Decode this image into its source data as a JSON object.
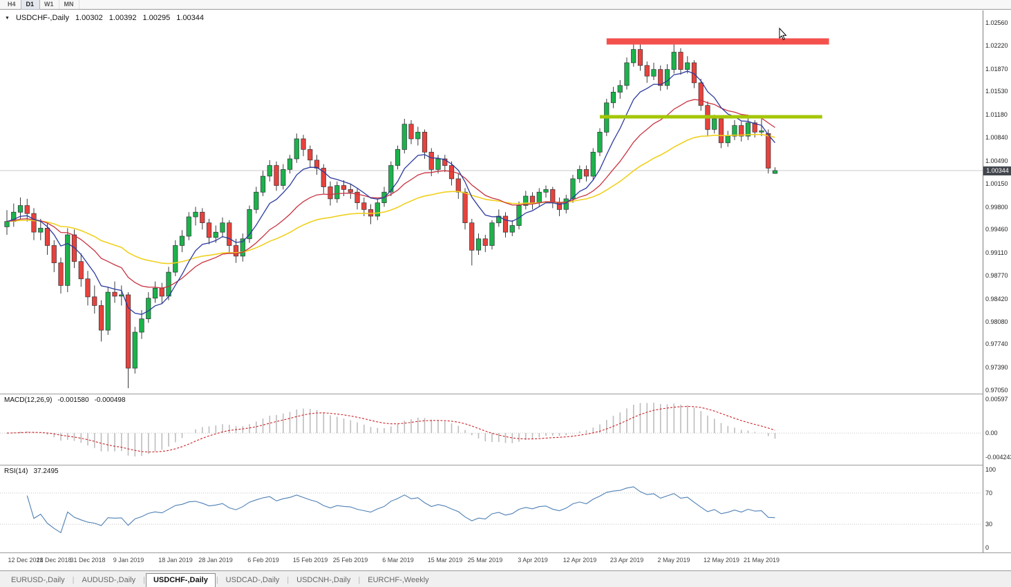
{
  "toolbar": {
    "timeframes": [
      {
        "label": "H4",
        "active": false
      },
      {
        "label": "D1",
        "active": true
      },
      {
        "label": "W1",
        "active": false
      },
      {
        "label": "MN",
        "active": false
      }
    ]
  },
  "chart": {
    "dropdown_icon": "▼",
    "symbol_label": "USDCHF-,Daily",
    "open": "1.00302",
    "high": "1.00392",
    "low": "1.00295",
    "close": "1.00344",
    "current_price": "1.00344",
    "price_axis_labels": [
      "1.02560",
      "1.02220",
      "1.01870",
      "1.01530",
      "1.01180",
      "1.00840",
      "1.00490",
      "1.00150",
      "0.99800",
      "0.99460",
      "0.99110",
      "0.98770",
      "0.98420",
      "0.98080",
      "0.97740",
      "0.97390",
      "0.97050"
    ],
    "colors": {
      "bull": "#1cb24b",
      "bear": "#e8423c",
      "wick": "#3a3a3a",
      "ma_fast": "#2b3a9e",
      "ma_mid": "#c8313f",
      "ma_slow": "#f0d01e",
      "resistance": "#f4514d",
      "support": "#a4c607",
      "price_line": "#c8c8c8",
      "badge_bg": "#42464d"
    }
  },
  "macd": {
    "name": "MACD(12,26,9)",
    "value_main": "-0.001580",
    "value_signal": "-0.000498",
    "axis_labels": [
      "0.00597",
      "0.00",
      "-0.004243"
    ],
    "histogram_color": "#bdbdbd",
    "signal_color": "#cc2328"
  },
  "rsi": {
    "name": "RSI(14)",
    "value": "37.2495",
    "axis_labels": [
      "100",
      "70",
      "30",
      "0"
    ],
    "line_color": "#4d7fb4"
  },
  "date_axis": [
    {
      "label": "12 Dec 2018",
      "index": 0
    },
    {
      "label": "21 Dec 2018",
      "index": 7
    },
    {
      "label": "31 Dec 2018",
      "index": 12
    },
    {
      "label": "9 Jan 2019",
      "index": 18
    },
    {
      "label": "18 Jan 2019",
      "index": 25
    },
    {
      "label": "28 Jan 2019",
      "index": 31
    },
    {
      "label": "6 Feb 2019",
      "index": 38
    },
    {
      "label": "15 Feb 2019",
      "index": 45
    },
    {
      "label": "25 Feb 2019",
      "index": 51
    },
    {
      "label": "6 Mar 2019",
      "index": 58
    },
    {
      "label": "15 Mar 2019",
      "index": 65
    },
    {
      "label": "25 Mar 2019",
      "index": 71
    },
    {
      "label": "3 Apr 2019",
      "index": 78
    },
    {
      "label": "12 Apr 2019",
      "index": 85
    },
    {
      "label": "23 Apr 2019",
      "index": 92
    },
    {
      "label": "2 May 2019",
      "index": 99
    },
    {
      "label": "12 May 2019",
      "index": 106
    },
    {
      "label": "21 May 2019",
      "index": 112
    }
  ],
  "tabs": [
    {
      "label": "EURUSD-,Daily",
      "active": false
    },
    {
      "label": "AUDUSD-,Daily",
      "active": false
    },
    {
      "label": "USDCHF-,Daily",
      "active": true
    },
    {
      "label": "USDCAD-,Daily",
      "active": false
    },
    {
      "label": "USDCNH-,Daily",
      "active": false
    },
    {
      "label": "EURCHF-,Weekly",
      "active": false
    }
  ],
  "chart_data": {
    "type": "candlestick",
    "symbol": "USDCHF",
    "timeframe": "Daily",
    "price_range": [
      0.9705,
      1.0256
    ],
    "overlays": [
      {
        "name": "ema-fast",
        "period": 8
      },
      {
        "name": "ema-mid",
        "period": 20
      },
      {
        "name": "ema-slow",
        "period": 45
      }
    ],
    "annotations": [
      {
        "type": "horizontal-band",
        "role": "resistance",
        "price": 1.0228,
        "from_index": 89,
        "to_index": 122
      },
      {
        "type": "horizontal-band",
        "role": "support",
        "price": 1.0115,
        "from_index": 88,
        "to_index": 121
      }
    ],
    "indicators": {
      "macd": {
        "fast": 12,
        "slow": 26,
        "signal": 9,
        "last_main": -0.00158,
        "last_signal": -0.000498,
        "scale_max": 0.00597,
        "scale_min": -0.004243
      },
      "rsi": {
        "period": 14,
        "last_value": 37.2495,
        "levels": [
          70,
          30
        ]
      }
    },
    "ohlc": [
      [
        0.995,
        0.9975,
        0.9938,
        0.9958
      ],
      [
        0.9958,
        0.9985,
        0.995,
        0.9972
      ],
      [
        0.9972,
        0.9994,
        0.9962,
        0.9982
      ],
      [
        0.9982,
        0.9992,
        0.9958,
        0.997
      ],
      [
        0.997,
        0.9978,
        0.993,
        0.9942
      ],
      [
        0.9942,
        0.9962,
        0.993,
        0.9948
      ],
      [
        0.9948,
        0.9955,
        0.9908,
        0.9922
      ],
      [
        0.9922,
        0.993,
        0.9882,
        0.9896
      ],
      [
        0.9896,
        0.9904,
        0.985,
        0.9862
      ],
      [
        0.9862,
        0.9948,
        0.9852,
        0.9938
      ],
      [
        0.9938,
        0.9946,
        0.9888,
        0.9898
      ],
      [
        0.9898,
        0.991,
        0.986,
        0.9872
      ],
      [
        0.9872,
        0.9884,
        0.9832,
        0.9845
      ],
      [
        0.9845,
        0.9862,
        0.982,
        0.9832
      ],
      [
        0.9832,
        0.984,
        0.9778,
        0.9795
      ],
      [
        0.9795,
        0.986,
        0.9788,
        0.9852
      ],
      [
        0.9852,
        0.9868,
        0.9836,
        0.9846
      ],
      [
        0.9846,
        0.9862,
        0.9832,
        0.9848
      ],
      [
        0.9848,
        0.9852,
        0.9708,
        0.9738
      ],
      [
        0.9738,
        0.98,
        0.973,
        0.9792
      ],
      [
        0.9792,
        0.9825,
        0.9782,
        0.9812
      ],
      [
        0.9812,
        0.9852,
        0.9806,
        0.9843
      ],
      [
        0.9843,
        0.9868,
        0.9836,
        0.9858
      ],
      [
        0.9858,
        0.9866,
        0.9835,
        0.9846
      ],
      [
        0.9846,
        0.989,
        0.984,
        0.9882
      ],
      [
        0.9882,
        0.993,
        0.9876,
        0.9922
      ],
      [
        0.9922,
        0.9945,
        0.9912,
        0.9936
      ],
      [
        0.9936,
        0.9972,
        0.993,
        0.9965
      ],
      [
        0.9965,
        0.998,
        0.9952,
        0.9972
      ],
      [
        0.9972,
        0.9978,
        0.9946,
        0.9956
      ],
      [
        0.9956,
        0.9962,
        0.9924,
        0.9934
      ],
      [
        0.9934,
        0.9952,
        0.9926,
        0.9942
      ],
      [
        0.9942,
        0.9964,
        0.9934,
        0.9956
      ],
      [
        0.9956,
        0.996,
        0.9912,
        0.9922
      ],
      [
        0.9922,
        0.9932,
        0.9896,
        0.9906
      ],
      [
        0.9906,
        0.994,
        0.9898,
        0.9932
      ],
      [
        0.9932,
        0.9982,
        0.9926,
        0.9976
      ],
      [
        0.9976,
        1.001,
        0.997,
        1.0002
      ],
      [
        1.0002,
        1.0034,
        0.9996,
        1.0026
      ],
      [
        1.0026,
        1.005,
        1.0018,
        1.0042
      ],
      [
        1.0042,
        1.0048,
        1.0004,
        1.0012
      ],
      [
        1.0012,
        1.0044,
        1.0006,
        1.0036
      ],
      [
        1.0036,
        1.0058,
        1.003,
        1.0052
      ],
      [
        1.0052,
        1.009,
        1.0046,
        1.0082
      ],
      [
        1.0082,
        1.0088,
        1.0056,
        1.0066
      ],
      [
        1.0066,
        1.0072,
        1.004,
        1.005
      ],
      [
        1.005,
        1.0058,
        1.0028,
        1.0038
      ],
      [
        1.0038,
        1.0044,
        1.0,
        1.001
      ],
      [
        1.001,
        1.0018,
        0.9982,
        0.9992
      ],
      [
        0.9992,
        1.0018,
        0.9986,
        1.0012
      ],
      [
        1.0012,
        1.002,
        0.9996,
        1.0006
      ],
      [
        1.0006,
        1.0014,
        0.9992,
        1.0002
      ],
      [
        1.0002,
        1.0008,
        0.9976,
        0.9986
      ],
      [
        0.9986,
        0.9994,
        0.9966,
        0.9976
      ],
      [
        0.9976,
        0.9984,
        0.9954,
        0.9966
      ],
      [
        0.9966,
        0.9992,
        0.996,
        0.9986
      ],
      [
        0.9986,
        1.001,
        0.998,
        1.0002
      ],
      [
        1.0002,
        1.0048,
        0.9996,
        1.0042
      ],
      [
        1.0042,
        1.0072,
        1.0036,
        1.0066
      ],
      [
        1.0066,
        1.0112,
        1.006,
        1.0104
      ],
      [
        1.0104,
        1.011,
        1.0074,
        1.0082
      ],
      [
        1.0082,
        1.01,
        1.0072,
        1.0092
      ],
      [
        1.0092,
        1.0096,
        1.0052,
        1.0062
      ],
      [
        1.0062,
        1.0068,
        1.0026,
        1.0036
      ],
      [
        1.0036,
        1.0058,
        1.003,
        1.0052
      ],
      [
        1.0052,
        1.0058,
        1.0032,
        1.0042
      ],
      [
        1.0042,
        1.0048,
        1.0012,
        1.0022
      ],
      [
        1.0022,
        1.003,
        0.9992,
        1.0002
      ],
      [
        1.0002,
        1.0008,
        0.9946,
        0.9956
      ],
      [
        0.9956,
        0.9962,
        0.9892,
        0.9915
      ],
      [
        0.9915,
        0.994,
        0.9908,
        0.9932
      ],
      [
        0.9932,
        0.9938,
        0.9912,
        0.9922
      ],
      [
        0.9922,
        0.996,
        0.9916,
        0.9956
      ],
      [
        0.9956,
        0.9976,
        0.995,
        0.9966
      ],
      [
        0.9966,
        0.9972,
        0.9934,
        0.9942
      ],
      [
        0.9942,
        0.996,
        0.9936,
        0.9952
      ],
      [
        0.9952,
        0.9988,
        0.9946,
        0.9982
      ],
      [
        0.9982,
        1.0004,
        0.9976,
        0.9996
      ],
      [
        0.9996,
        1.0002,
        0.9976,
        0.9986
      ],
      [
        0.9986,
        1.0008,
        0.998,
        1.0002
      ],
      [
        1.0002,
        1.0012,
        0.9994,
        1.0006
      ],
      [
        1.0006,
        1.001,
        0.9978,
        0.9986
      ],
      [
        0.9986,
        0.9994,
        0.9966,
        0.9976
      ],
      [
        0.9976,
        0.9998,
        0.997,
        0.9992
      ],
      [
        0.9992,
        1.0028,
        0.9986,
        1.0022
      ],
      [
        1.0022,
        1.0042,
        1.0016,
        1.0036
      ],
      [
        1.0036,
        1.0042,
        1.0018,
        1.0026
      ],
      [
        1.0026,
        1.0068,
        1.002,
        1.0062
      ],
      [
        1.0062,
        1.0098,
        1.0056,
        1.0092
      ],
      [
        1.0092,
        1.0142,
        1.0086,
        1.0136
      ],
      [
        1.0136,
        1.016,
        1.0128,
        1.0152
      ],
      [
        1.0152,
        1.017,
        1.0142,
        1.0162
      ],
      [
        1.0162,
        1.0204,
        1.0156,
        1.0196
      ],
      [
        1.0196,
        1.023,
        1.019,
        1.0216
      ],
      [
        1.0216,
        1.0224,
        1.0184,
        1.0192
      ],
      [
        1.0192,
        1.0198,
        1.0166,
        1.0176
      ],
      [
        1.0176,
        1.0196,
        1.017,
        1.0186
      ],
      [
        1.0186,
        1.0192,
        1.0154,
        1.0162
      ],
      [
        1.0162,
        1.0194,
        1.0156,
        1.0186
      ],
      [
        1.0186,
        1.0226,
        1.018,
        1.0212
      ],
      [
        1.0212,
        1.0218,
        1.0178,
        1.0186
      ],
      [
        1.0186,
        1.0206,
        1.018,
        1.0196
      ],
      [
        1.0196,
        1.02,
        1.0158,
        1.0166
      ],
      [
        1.0166,
        1.0172,
        1.0124,
        1.0132
      ],
      [
        1.0132,
        1.0138,
        1.0086,
        1.0096
      ],
      [
        1.0096,
        1.0118,
        1.009,
        1.0112
      ],
      [
        1.0112,
        1.0116,
        1.0068,
        1.0076
      ],
      [
        1.0076,
        1.0094,
        1.007,
        1.0086
      ],
      [
        1.0086,
        1.011,
        1.008,
        1.0102
      ],
      [
        1.0102,
        1.0108,
        1.0078,
        1.0086
      ],
      [
        1.0086,
        1.0114,
        1.008,
        1.0106
      ],
      [
        1.0106,
        1.011,
        1.0084,
        1.0092
      ],
      [
        1.0092,
        1.0112,
        1.0086,
        1.0094
      ],
      [
        1.009,
        1.0096,
        1.003,
        1.0038
      ],
      [
        1.00302,
        1.00392,
        1.00295,
        1.00344
      ]
    ]
  }
}
